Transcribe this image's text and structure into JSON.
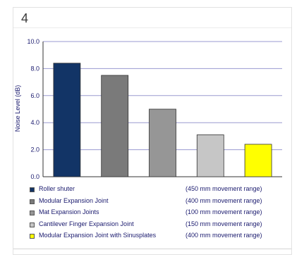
{
  "panel_number": "4",
  "chart_data": {
    "type": "bar",
    "title": "",
    "xlabel": "",
    "ylabel": "Noise Level (dB)",
    "ylim": [
      0,
      10
    ],
    "yticks": [
      "0.0",
      "2.0",
      "4.0",
      "6.0",
      "8.0",
      "10.0"
    ],
    "grid": true,
    "legend_position": "bottom",
    "categories": [
      "Roller shuter",
      "Modular Expansion Joint",
      "Mat Expansion Joints",
      "Cantilever Finger Expansion Joint",
      "Modular Expansion Joint with Sinusplates"
    ],
    "ranges": [
      "(450 mm movement range)",
      "(400 mm movement range)",
      "(100 mm movement range)",
      "(150 mm movement range)",
      "(400 mm movement range)"
    ],
    "values": [
      8.4,
      7.5,
      5.0,
      3.1,
      2.4
    ],
    "colors": [
      "#123466",
      "#7a7a7a",
      "#969696",
      "#c6c6c6",
      "#ffff00"
    ],
    "gridline_color": "#9a9ad0"
  }
}
